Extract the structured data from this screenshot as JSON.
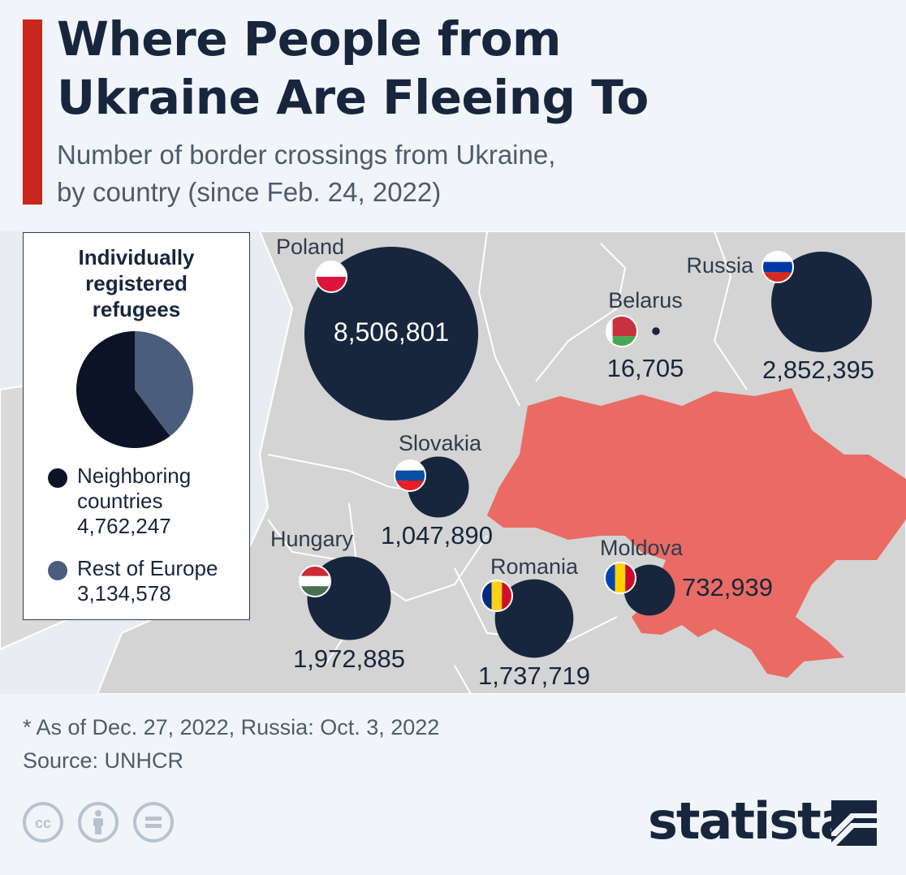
{
  "header": {
    "title_lines": [
      "Where People from",
      "Ukraine Are Fleeing To"
    ],
    "subtitle_lines": [
      "Number of border crossings from Ukraine,",
      "by country (since Feb. 24, 2022)"
    ]
  },
  "chart_data": [
    {
      "type": "bubble-map",
      "title": "Where People from Ukraine Are Fleeing To",
      "subtitle": "Number of border crossings from Ukraine, by country (since Feb. 24, 2022)",
      "points": [
        {
          "country": "Poland",
          "value": 8506801,
          "label": "8,506,801",
          "flag": "flag-poland-icon"
        },
        {
          "country": "Russia",
          "value": 2852395,
          "label": "2,852,395",
          "flag": "flag-russia-icon"
        },
        {
          "country": "Belarus",
          "value": 16705,
          "label": "16,705",
          "flag": "flag-belarus-icon"
        },
        {
          "country": "Slovakia",
          "value": 1047890,
          "label": "1,047,890",
          "flag": "flag-slovakia-icon"
        },
        {
          "country": "Hungary",
          "value": 1972885,
          "label": "1,972,885",
          "flag": "flag-hungary-icon"
        },
        {
          "country": "Romania",
          "value": 1737719,
          "label": "1,737,719",
          "flag": "flag-romania-icon"
        },
        {
          "country": "Moldova",
          "value": 732939,
          "label": "732,939",
          "flag": "flag-moldova-icon"
        }
      ],
      "highlighted_country": "Ukraine",
      "colors": {
        "bubble": "#17263d",
        "ukraine": "#e96b63",
        "land": "#d4d4d4",
        "water": "#e9edf1"
      }
    },
    {
      "type": "pie",
      "title": "Individually registered refugees",
      "series": [
        {
          "name": "Neighboring countries",
          "value": 4762247,
          "label": "4,762,247",
          "color": "#0b1426"
        },
        {
          "name": "Rest of Europe",
          "value": 3134578,
          "label": "3,134,578",
          "color": "#4a5d7c"
        }
      ]
    }
  ],
  "legend": {
    "title_lines": [
      "Individually",
      "registered",
      "refugees"
    ],
    "items": [
      {
        "name_lines": [
          "Neighboring",
          "countries"
        ],
        "value": "4,762,247",
        "color": "#0b1426"
      },
      {
        "name_lines": [
          "Rest of Europe"
        ],
        "value": "3,134,578",
        "color": "#4a5d7c"
      }
    ]
  },
  "footer": {
    "note": "* As of Dec. 27, 2022, Russia: Oct. 3, 2022",
    "source": "Source: UNHCR",
    "cc_icons": [
      "cc-icon",
      "attribution-icon",
      "no-derivatives-icon"
    ],
    "brand": "statista"
  }
}
